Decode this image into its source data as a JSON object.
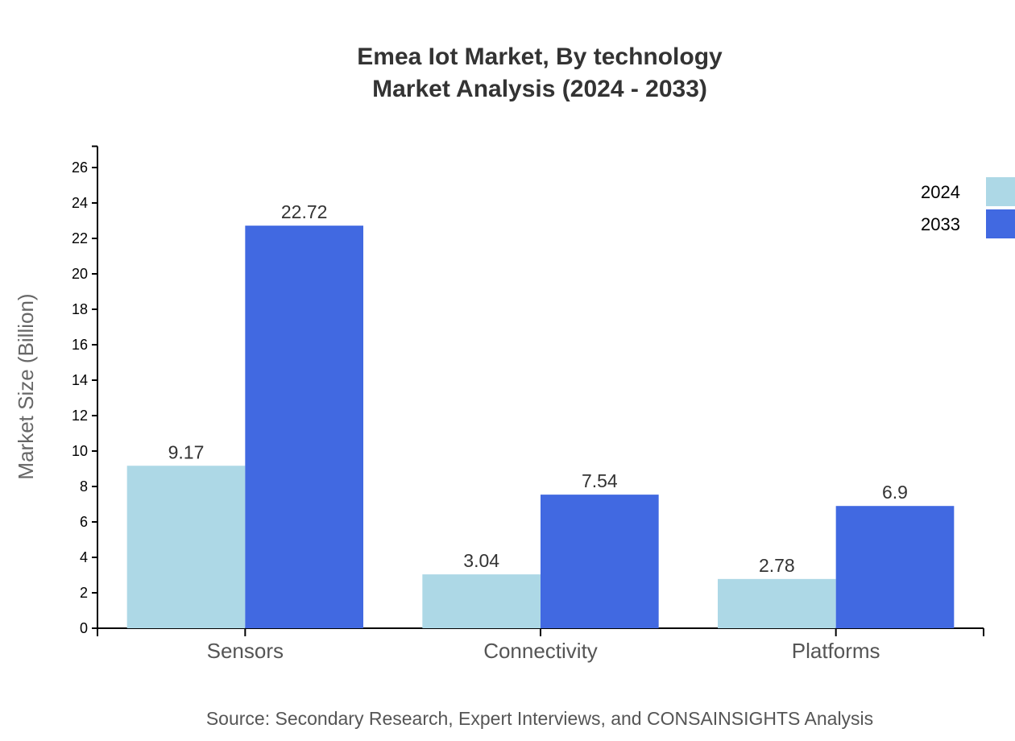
{
  "chart_data": {
    "type": "bar",
    "title": [
      "Emea Iot Market, By technology",
      "Market Analysis (2024 - 2033)"
    ],
    "xlabel": "",
    "ylabel": "Market Size (Billion)",
    "categories": [
      "Sensors",
      "Connectivity",
      "Platforms"
    ],
    "series": [
      {
        "name": "2024",
        "values": [
          9.17,
          3.04,
          2.78
        ],
        "color": "#add8e6"
      },
      {
        "name": "2033",
        "values": [
          22.72,
          7.54,
          6.9
        ],
        "color": "#4169e1"
      }
    ],
    "ylim": [
      0,
      27.2
    ],
    "yticks": [
      0,
      2,
      4,
      6,
      8,
      10,
      12,
      14,
      16,
      18,
      20,
      22,
      24,
      26
    ],
    "grid": false,
    "legend": "top-right"
  },
  "source": "Source: Secondary Research, Expert Interviews, and CONSAINSIGHTS Analysis"
}
